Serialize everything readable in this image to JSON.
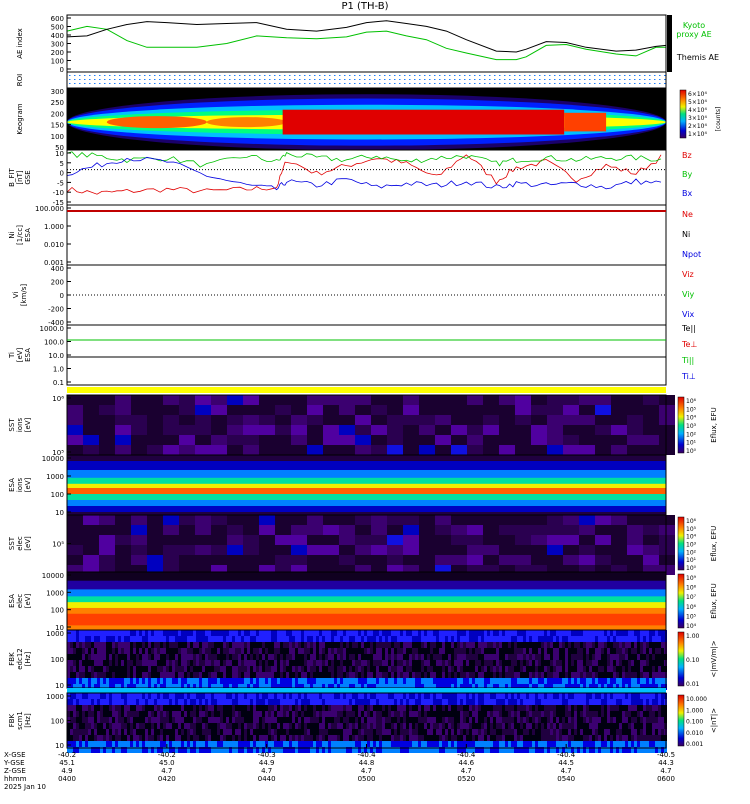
{
  "title": "P1 (TH-B)",
  "colors": {
    "red": "#e00000",
    "green": "#00c000",
    "blue": "#0000e0",
    "black": "#000000"
  },
  "chart_data": [
    {
      "type": "line",
      "panel": "ae",
      "ylabel": "AE index",
      "yticks": [
        "600",
        "500",
        "400",
        "300",
        "200",
        "100",
        "0"
      ],
      "ylim": [
        0,
        600
      ],
      "series": [
        {
          "name": "Kyoto proxy AE",
          "label_lines": [
            "Kyoto",
            "proxy AE"
          ],
          "color": "#00c000",
          "x": [
            0,
            4,
            8,
            12,
            16,
            20,
            26,
            32,
            38,
            44,
            50,
            56,
            60,
            64,
            68,
            72,
            76,
            80,
            86,
            90,
            92,
            96,
            100,
            104,
            110,
            114,
            118,
            120
          ],
          "values": [
            430,
            480,
            450,
            330,
            260,
            260,
            260,
            300,
            380,
            360,
            350,
            370,
            420,
            430,
            380,
            340,
            250,
            200,
            130,
            130,
            160,
            280,
            290,
            240,
            190,
            170,
            260,
            260
          ]
        },
        {
          "name": "Themis AE",
          "label_lines": [
            "Themis AE"
          ],
          "color": "#000000",
          "x": [
            0,
            4,
            8,
            12,
            16,
            20,
            26,
            32,
            38,
            44,
            50,
            56,
            60,
            64,
            68,
            72,
            76,
            80,
            86,
            90,
            92,
            96,
            100,
            104,
            110,
            114,
            118,
            120
          ],
          "values": [
            370,
            380,
            450,
            500,
            530,
            520,
            500,
            510,
            520,
            450,
            430,
            470,
            520,
            540,
            510,
            480,
            430,
            340,
            220,
            210,
            240,
            320,
            310,
            260,
            220,
            230,
            270,
            280
          ]
        }
      ]
    },
    {
      "type": "table",
      "panel": "roi",
      "ylabel": "ROI"
    },
    {
      "type": "heatmap",
      "panel": "keogram",
      "ylabel": "Keogram",
      "yticks": [
        "300",
        "250",
        "200",
        "150",
        "100",
        "50"
      ],
      "colorbar_ticks": [
        "6×10⁴",
        "5×10⁴",
        "4×10⁴",
        "3×10⁴",
        "2×10⁴",
        "1×10⁴"
      ],
      "colorbar_unit": "[counts]"
    },
    {
      "type": "line",
      "panel": "bfield",
      "ylabel_lines": [
        "B_FIT",
        "[nT]",
        "GSE"
      ],
      "yticks": [
        "10",
        "5",
        "0",
        "-5",
        "-10",
        "-15"
      ],
      "ylim": [
        -18,
        10
      ],
      "series": [
        {
          "name": "Bz",
          "color": "#e00000",
          "x": [
            0,
            6,
            12,
            20,
            28,
            36,
            42,
            44,
            50,
            56,
            62,
            68,
            74,
            80,
            86,
            90,
            96,
            102,
            108,
            114,
            120
          ],
          "values": [
            -10,
            -12,
            -11,
            -10,
            -11,
            -10,
            -9,
            5,
            -2,
            2,
            6,
            3,
            -4,
            8,
            -6,
            1,
            4,
            -5,
            2,
            -2,
            8
          ]
        },
        {
          "name": "By",
          "color": "#00c000",
          "x": [
            0,
            6,
            12,
            20,
            28,
            36,
            42,
            44,
            50,
            56,
            62,
            68,
            74,
            80,
            86,
            90,
            96,
            102,
            108,
            114,
            120
          ],
          "values": [
            8,
            7,
            5,
            6,
            2,
            7,
            4,
            8,
            6,
            5,
            7,
            4,
            6,
            7,
            3,
            5,
            6,
            5,
            6,
            6,
            5
          ]
        },
        {
          "name": "Bx",
          "color": "#0000e0",
          "x": [
            0,
            6,
            12,
            20,
            28,
            36,
            42,
            44,
            50,
            56,
            62,
            68,
            74,
            80,
            86,
            90,
            96,
            102,
            108,
            114,
            120
          ],
          "values": [
            -2,
            2,
            6,
            4,
            -3,
            -8,
            -10,
            -6,
            -8,
            -5,
            -9,
            -7,
            -8,
            -6,
            -9,
            -7,
            -8,
            -7,
            -9,
            -6,
            -7
          ]
        }
      ]
    },
    {
      "type": "line",
      "panel": "density",
      "ylabel_lines": [
        "Ni",
        "[1/cc]",
        "ESA"
      ],
      "yticks": [
        "100.000",
        "1.000",
        "0.010",
        "0.001"
      ],
      "scale": "log",
      "legend": [
        {
          "name": "Ne",
          "color": "#e00000"
        },
        {
          "name": "Ni",
          "color": "#000000"
        },
        {
          "name": "Npot",
          "color": "#0000e0"
        }
      ]
    },
    {
      "type": "line",
      "panel": "velocity",
      "ylabel_lines": [
        "Vi",
        "[km/s]"
      ],
      "yticks": [
        "400",
        "200",
        "0",
        "-200",
        "-400"
      ],
      "ylim": [
        -500,
        500
      ],
      "legend": [
        {
          "name": "Viz",
          "color": "#e00000"
        },
        {
          "name": "Viy",
          "color": "#00c000"
        },
        {
          "name": "Vix",
          "color": "#0000e0"
        }
      ]
    },
    {
      "type": "line",
      "panel": "temperature",
      "ylabel_lines": [
        "Ti",
        "[eV]",
        "ESA"
      ],
      "yticks": [
        "1000.0",
        "100.0",
        "10.0",
        "1.0",
        "0.1"
      ],
      "scale": "log",
      "legend": [
        {
          "name": "Te||",
          "color": "#000000"
        },
        {
          "name": "Te⊥",
          "color": "#e00000"
        },
        {
          "name": "Ti||",
          "color": "#00c000"
        },
        {
          "name": "Ti⊥",
          "color": "#0000e0"
        }
      ]
    },
    {
      "type": "heatmap",
      "panel": "sst_ion",
      "ylabel_lines": [
        "SST",
        "ions",
        "[eV]"
      ],
      "yticks": [
        "10⁶",
        "10⁵"
      ],
      "colorbar_ticks": [
        "10⁶",
        "10⁵",
        "10⁴",
        "10³",
        "10²",
        "10¹",
        "10⁰"
      ],
      "colorbar_label": "Eflux, EFU"
    },
    {
      "type": "heatmap",
      "panel": "esa_ion",
      "ylabel_lines": [
        "ESA",
        "ions",
        "[eV]"
      ],
      "yticks": [
        "10000",
        "1000",
        "100",
        "10"
      ]
    },
    {
      "type": "heatmap",
      "panel": "sst_elec",
      "ylabel_lines": [
        "SST",
        "elec",
        "[eV]"
      ],
      "yticks": [
        "10⁵"
      ],
      "colorbar_ticks": [
        "10⁶",
        "10⁵",
        "10⁴",
        "10³",
        "10²",
        "10¹",
        "10⁰"
      ],
      "colorbar_label": "Eflux, EFU"
    },
    {
      "type": "heatmap",
      "panel": "esa_elec",
      "ylabel_lines": [
        "ESA",
        "elec",
        "[eV]"
      ],
      "yticks": [
        "10000",
        "1000",
        "100",
        "10"
      ],
      "colorbar_ticks": [
        "10⁹",
        "10⁸",
        "10⁷",
        "10⁶",
        "10⁵",
        "10⁴"
      ],
      "colorbar_label": "Eflux, EFU"
    },
    {
      "type": "heatmap",
      "panel": "fbk_e",
      "ylabel_lines": [
        "FBK",
        "edc12",
        "[Hz]"
      ],
      "yticks": [
        "1000",
        "100",
        "10"
      ],
      "colorbar_ticks": [
        "1.00",
        "0.10",
        "0.01"
      ],
      "colorbar_label": "<|mV/m|>"
    },
    {
      "type": "heatmap",
      "panel": "fbk_b",
      "ylabel_lines": [
        "FBK",
        "scm1",
        "[Hz]"
      ],
      "yticks": [
        "1000",
        "100",
        "10"
      ],
      "colorbar_ticks": [
        "10.000",
        "1.000",
        "0.100",
        "0.010",
        "0.001"
      ],
      "colorbar_label": "<|nT|>"
    }
  ],
  "footer": {
    "row_labels": [
      "X-GSE",
      "Y-GSE",
      "Z-GSE",
      "hhmm",
      "2025 Jan 10"
    ],
    "columns": [
      {
        "x": "-40.2",
        "y": "45.1",
        "z": "4.9",
        "t": "0400"
      },
      {
        "x": "-40.2",
        "y": "45.0",
        "z": "4.7",
        "t": "0420"
      },
      {
        "x": "-40.3",
        "y": "44.9",
        "z": "4.7",
        "t": "0440"
      },
      {
        "x": "-40.4",
        "y": "44.8",
        "z": "4.7",
        "t": "0500"
      },
      {
        "x": "-40.4",
        "y": "44.6",
        "z": "4.7",
        "t": "0520"
      },
      {
        "x": "-40.4",
        "y": "44.5",
        "z": "4.7",
        "t": "0540"
      },
      {
        "x": "-40.5",
        "y": "44.3",
        "z": "4.7",
        "t": "0600"
      }
    ]
  }
}
